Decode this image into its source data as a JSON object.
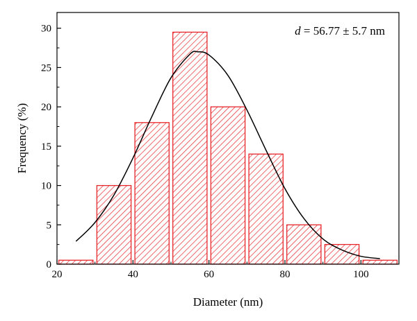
{
  "chart_data": {
    "type": "bar",
    "title": "",
    "xlabel": "Diameter (nm)",
    "ylabel": "Frequency (%)",
    "xlim": [
      20,
      110
    ],
    "ylim": [
      0,
      32
    ],
    "x_ticks": [
      20,
      40,
      60,
      80,
      100
    ],
    "y_ticks": [
      0,
      5,
      10,
      15,
      20,
      25,
      30
    ],
    "bin_width": 10,
    "bars": [
      {
        "center": 25,
        "value": 0.5
      },
      {
        "center": 35,
        "value": 10
      },
      {
        "center": 45,
        "value": 18
      },
      {
        "center": 55,
        "value": 29.5
      },
      {
        "center": 65,
        "value": 20
      },
      {
        "center": 75,
        "value": 14
      },
      {
        "center": 85,
        "value": 5
      },
      {
        "center": 95,
        "value": 2.5
      },
      {
        "center": 105,
        "value": 0.5
      }
    ],
    "fit_curve": {
      "type": "gaussian",
      "x": [
        25,
        30,
        35,
        40,
        45,
        50,
        55,
        57,
        60,
        65,
        70,
        75,
        80,
        85,
        90,
        95,
        100,
        105
      ],
      "y": [
        2.9,
        5.3,
        8.8,
        13.5,
        18.8,
        23.7,
        26.7,
        27.0,
        26.6,
        24.0,
        19.6,
        14.5,
        9.6,
        5.8,
        3.2,
        1.8,
        1.0,
        0.7
      ]
    },
    "annotation": {
      "symbol": "d",
      "text": " = 56.77 ± 5.7 nm"
    },
    "bar_color": "#e8262a",
    "curve_color": "#000000",
    "grid": false,
    "legend": "none"
  }
}
